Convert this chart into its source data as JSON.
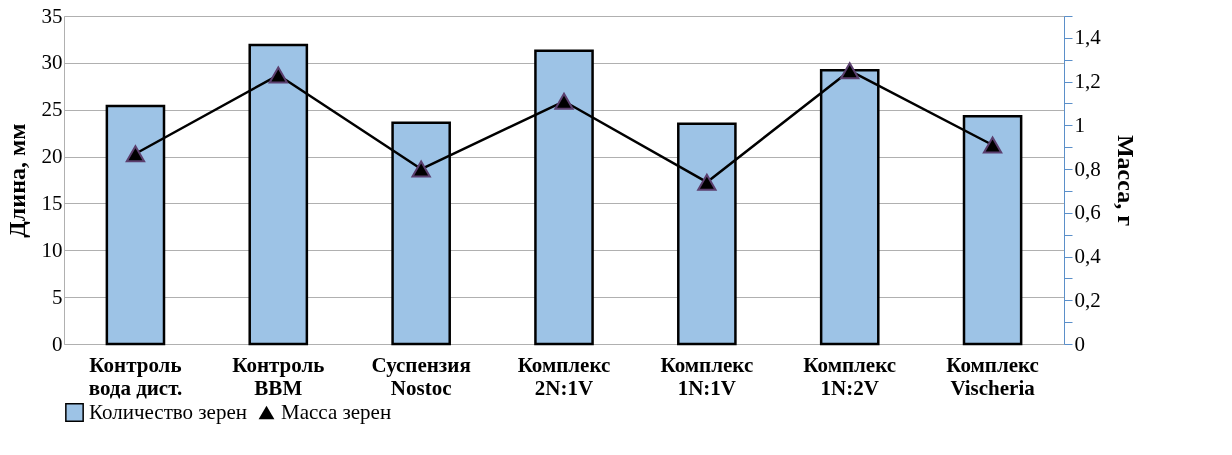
{
  "chart_data": {
    "type": "bar",
    "ylabel": "Длина, мм",
    "y2label": "Масса, г",
    "categories": [
      "Контроль\nвода дист.",
      "Контроль\nBBM",
      "Суспензия\nNostoc",
      "Комплекс\n2N:1V",
      "Комплекс\n1N:1V",
      "Комплекс\n1N:2V",
      "Комплекс\nVischeria"
    ],
    "series": [
      {
        "name": "Количество зерен",
        "color": "#9dc3e6",
        "values": [
          25.4,
          31.9,
          23.6,
          31.3,
          23.5,
          29.2,
          24.3
        ]
      },
      {
        "name": "Масса зерен",
        "type": "line",
        "axis": "y2",
        "color": "#000000",
        "marker": "triangle",
        "values": [
          0.87,
          1.23,
          0.8,
          1.11,
          0.74,
          1.25,
          0.91
        ]
      }
    ],
    "ylim": [
      0,
      35
    ],
    "yticks": [
      0,
      5,
      10,
      15,
      20,
      25,
      30,
      35
    ],
    "y2lim": [
      0,
      1.5
    ],
    "y2ticks": [
      0,
      {
        "value": 0.1,
        "label": null
      },
      {
        "value": 0.2,
        "label": "0,2"
      },
      {
        "value": 0.3,
        "label": null
      },
      {
        "value": 0.4,
        "label": "0,4"
      },
      {
        "value": 0.5,
        "label": null
      },
      {
        "value": 0.6,
        "label": "0,6"
      },
      {
        "value": 0.7,
        "label": null
      },
      {
        "value": 0.8,
        "label": "0,8"
      },
      {
        "value": 0.9,
        "label": null
      },
      1,
      {
        "value": 1.1,
        "label": null
      },
      {
        "value": 1.2,
        "label": "1,2"
      },
      {
        "value": 1.3,
        "label": null
      },
      {
        "value": 1.4,
        "label": "1,4"
      },
      {
        "value": 1.5,
        "label": null
      }
    ],
    "grid": "y",
    "legend": "bottom"
  }
}
